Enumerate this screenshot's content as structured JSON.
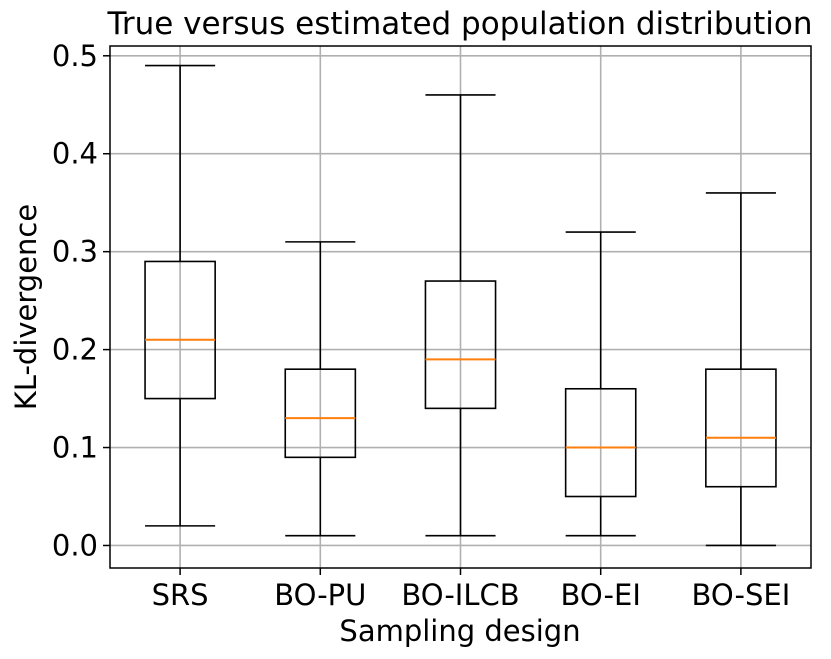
{
  "chart_data": {
    "type": "boxplot",
    "title": "True versus estimated population distribution",
    "xlabel": "Sampling design",
    "ylabel": "KL-divergence",
    "ylim": [
      -0.023,
      0.51
    ],
    "yticks": [
      0.0,
      0.1,
      0.2,
      0.3,
      0.4,
      0.5
    ],
    "ytick_labels": [
      "0.0",
      "0.1",
      "0.2",
      "0.3",
      "0.4",
      "0.5"
    ],
    "grid": true,
    "colors": {
      "box": "#000000",
      "median": "#ff7f0e",
      "grid": "#b0b0b0"
    },
    "categories": [
      "SRS",
      "BO-PU",
      "BO-ILCB",
      "BO-EI",
      "BO-SEI"
    ],
    "boxes": [
      {
        "name": "SRS",
        "whisker_low": 0.02,
        "q1": 0.15,
        "median": 0.21,
        "q3": 0.29,
        "whisker_high": 0.49
      },
      {
        "name": "BO-PU",
        "whisker_low": 0.01,
        "q1": 0.09,
        "median": 0.13,
        "q3": 0.18,
        "whisker_high": 0.31
      },
      {
        "name": "BO-ILCB",
        "whisker_low": 0.01,
        "q1": 0.14,
        "median": 0.19,
        "q3": 0.27,
        "whisker_high": 0.46
      },
      {
        "name": "BO-EI",
        "whisker_low": 0.01,
        "q1": 0.05,
        "median": 0.1,
        "q3": 0.16,
        "whisker_high": 0.32
      },
      {
        "name": "BO-SEI",
        "whisker_low": 0.0,
        "q1": 0.06,
        "median": 0.11,
        "q3": 0.18,
        "whisker_high": 0.36
      }
    ]
  }
}
